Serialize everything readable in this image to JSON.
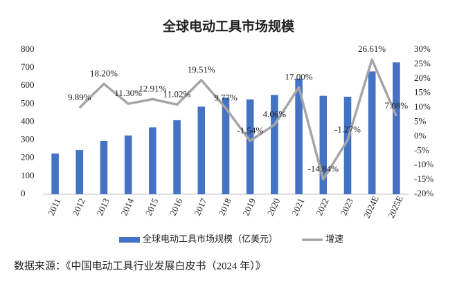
{
  "chart_data": {
    "type": "bar-line",
    "title": "全球电动工具市场规模",
    "categories": [
      "2011",
      "2012",
      "2013",
      "2014",
      "2015",
      "2016",
      "2017",
      "2018",
      "2019",
      "2020",
      "2021",
      "2022",
      "2023",
      "2024E",
      "2025E"
    ],
    "series": [
      {
        "name": "全球电动工具市场规模（亿美元）",
        "type": "bar",
        "color": "#4472c4",
        "values": [
          225,
          245,
          295,
          325,
          370,
          410,
          485,
          535,
          525,
          550,
          640,
          545,
          540,
          680,
          730
        ]
      },
      {
        "name": "增速",
        "type": "line",
        "color": "#a5a5a5",
        "axis": "y2",
        "values": [
          null,
          9.89,
          18.2,
          11.3,
          12.91,
          11.02,
          19.51,
          9.77,
          -1.54,
          4.06,
          17.0,
          -14.84,
          -1.27,
          26.61,
          7.08
        ],
        "value_labels": [
          null,
          "9.89%",
          "18.20%",
          "11.30%",
          "12.91%",
          "11.02%",
          "19.51%",
          "9.77%",
          "-1.54%",
          "4.06%",
          "17.00%",
          "-14.84%",
          "-1.27%",
          "26.61%",
          "7.08%"
        ]
      }
    ],
    "ylim": [
      0,
      800
    ],
    "yticks": [
      0,
      100,
      200,
      300,
      400,
      500,
      600,
      700,
      800
    ],
    "y2lim": [
      -20,
      30
    ],
    "y2ticks": [
      {
        "value": -20,
        "label": "-20%"
      },
      {
        "value": -15,
        "label": "-15%"
      },
      {
        "value": -10,
        "label": "-10%"
      },
      {
        "value": -5,
        "label": "-5%"
      },
      {
        "value": 0,
        "label": "0%"
      },
      {
        "value": 5,
        "label": "5%"
      },
      {
        "value": 10,
        "label": "10%"
      },
      {
        "value": 15,
        "label": "15%"
      },
      {
        "value": 20,
        "label": "20%"
      },
      {
        "value": 25,
        "label": "25%"
      },
      {
        "value": 30,
        "label": "30%"
      }
    ],
    "source": "数据来源：《中国电动工具行业发展白皮书（2024 年）》"
  }
}
